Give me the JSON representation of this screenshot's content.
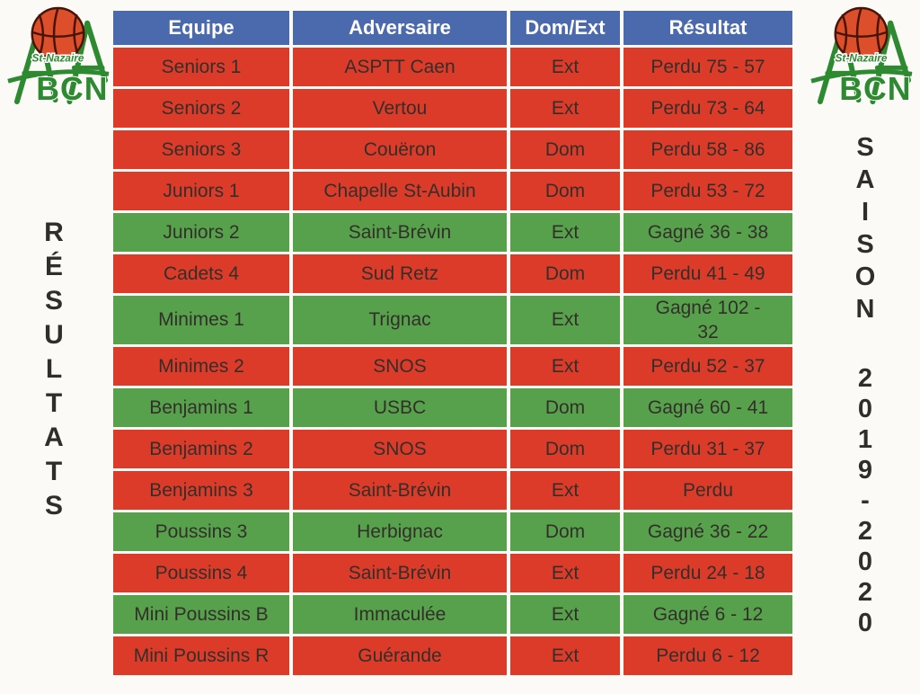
{
  "page": {
    "background": "#fbfaf7"
  },
  "logo": {
    "club_initials": "BCN",
    "city": "St-Nazaire",
    "green": "#2e8a30",
    "ball_fill": "#dd4e2b",
    "ball_line": "#471507"
  },
  "left_banner": {
    "text": "RÉSULTATS"
  },
  "right_banner": {
    "line1": "SAISON",
    "line2": "2019-2020"
  },
  "table": {
    "header_bg": "#4b69ad",
    "lost_bg": "#dd3b2a",
    "won_bg": "#58a14c",
    "headers": [
      "Equipe",
      "Adversaire",
      "Dom/Ext",
      "Résultat"
    ],
    "rows": [
      {
        "equipe": "Seniors 1",
        "adversaire": "ASPTT Caen",
        "dom_ext": "Ext",
        "resultat": "Perdu 75 - 57",
        "outcome": "lost"
      },
      {
        "equipe": "Seniors 2",
        "adversaire": "Vertou",
        "dom_ext": "Ext",
        "resultat": "Perdu 73 - 64",
        "outcome": "lost"
      },
      {
        "equipe": "Seniors 3",
        "adversaire": "Couëron",
        "dom_ext": "Dom",
        "resultat": "Perdu 58 - 86",
        "outcome": "lost"
      },
      {
        "equipe": "Juniors 1",
        "adversaire": "Chapelle St-Aubin",
        "dom_ext": "Dom",
        "resultat": "Perdu 53 - 72",
        "outcome": "lost"
      },
      {
        "equipe": "Juniors 2",
        "adversaire": "Saint-Brévin",
        "dom_ext": "Ext",
        "resultat": "Gagné 36 - 38",
        "outcome": "won"
      },
      {
        "equipe": "Cadets 4",
        "adversaire": "Sud Retz",
        "dom_ext": "Dom",
        "resultat": "Perdu 41 - 49",
        "outcome": "lost"
      },
      {
        "equipe": "Minimes 1",
        "adversaire": "Trignac",
        "dom_ext": "Ext",
        "resultat": "Gagné 102 - 32",
        "outcome": "won"
      },
      {
        "equipe": "Minimes 2",
        "adversaire": "SNOS",
        "dom_ext": "Ext",
        "resultat": "Perdu 52 - 37",
        "outcome": "lost"
      },
      {
        "equipe": "Benjamins 1",
        "adversaire": "USBC",
        "dom_ext": "Dom",
        "resultat": "Gagné 60 - 41",
        "outcome": "won"
      },
      {
        "equipe": "Benjamins 2",
        "adversaire": "SNOS",
        "dom_ext": "Dom",
        "resultat": "Perdu 31 - 37",
        "outcome": "lost"
      },
      {
        "equipe": "Benjamins 3",
        "adversaire": "Saint-Brévin",
        "dom_ext": "Ext",
        "resultat": "Perdu",
        "outcome": "lost"
      },
      {
        "equipe": "Poussins 3",
        "adversaire": "Herbignac",
        "dom_ext": "Dom",
        "resultat": "Gagné 36 - 22",
        "outcome": "won"
      },
      {
        "equipe": "Poussins 4",
        "adversaire": "Saint-Brévin",
        "dom_ext": "Ext",
        "resultat": "Perdu 24 - 18",
        "outcome": "lost"
      },
      {
        "equipe": "Mini Poussins B",
        "adversaire": "Immaculée",
        "dom_ext": "Ext",
        "resultat": "Gagné 6 - 12",
        "outcome": "won"
      },
      {
        "equipe": "Mini Poussins R",
        "adversaire": "Guérande",
        "dom_ext": "Ext",
        "resultat": "Perdu 6 - 12",
        "outcome": "lost"
      }
    ]
  }
}
